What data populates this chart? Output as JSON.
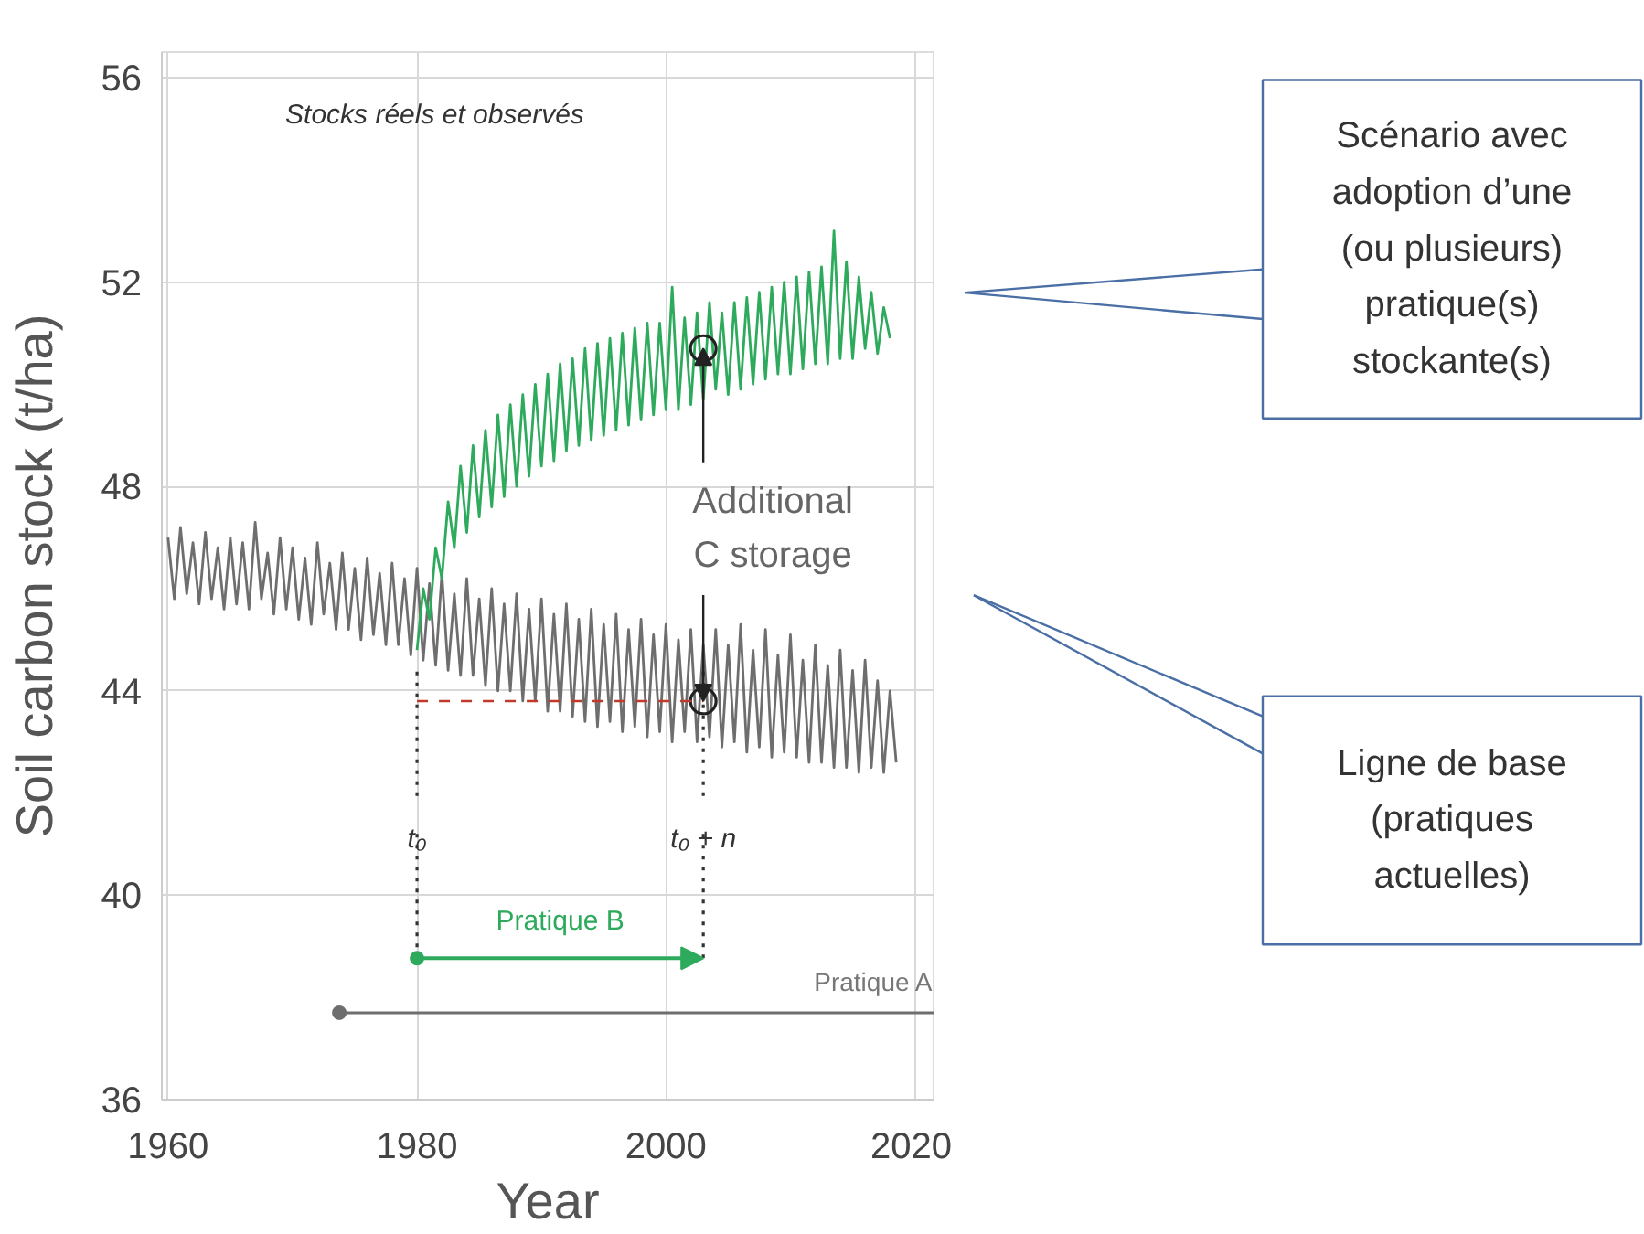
{
  "chart_data": {
    "type": "line",
    "title": "Stocks réels et observés",
    "xlabel": "Year",
    "ylabel": "Soil carbon stock (t/ha)",
    "xlim": [
      1959.5,
      2021.5
    ],
    "ylim": [
      36,
      56.5
    ],
    "xticks": [
      1960,
      1980,
      2000,
      2020
    ],
    "yticks": [
      36,
      40,
      44,
      48,
      52,
      56
    ],
    "grid": true,
    "series": [
      {
        "color": "#6e6e6e",
        "x": [
          1960,
          1960.5,
          1961,
          1961.5,
          1962,
          1962.5,
          1963,
          1963.5,
          1964,
          1964.5,
          1965,
          1965.5,
          1966,
          1966.5,
          1967,
          1967.5,
          1968,
          1968.5,
          1969,
          1969.5,
          1970,
          1970.5,
          1971,
          1971.5,
          1972,
          1972.5,
          1973,
          1973.5,
          1974,
          1974.5,
          1975,
          1975.5,
          1976,
          1976.5,
          1977,
          1977.5,
          1978,
          1978.5,
          1979,
          1979.5,
          1980,
          1980.5,
          1981,
          1981.5,
          1982,
          1982.5,
          1983,
          1983.5,
          1984,
          1984.5,
          1985,
          1985.5,
          1986,
          1986.5,
          1987,
          1987.5,
          1988,
          1988.5,
          1989,
          1989.5,
          1990,
          1990.5,
          1991,
          1991.5,
          1992,
          1992.5,
          1993,
          1993.5,
          1994,
          1994.5,
          1995,
          1995.5,
          1996,
          1996.5,
          1997,
          1997.5,
          1998,
          1998.5,
          1999,
          1999.5,
          2000,
          2000.5,
          2001,
          2001.5,
          2002,
          2002.5,
          2003,
          2003.5,
          2004,
          2004.5,
          2005,
          2005.5,
          2006,
          2006.5,
          2007,
          2007.5,
          2008,
          2008.5,
          2009,
          2009.5,
          2010,
          2010.5,
          2011,
          2011.5,
          2012,
          2012.5,
          2013,
          2013.5,
          2014,
          2014.5,
          2015,
          2015.5,
          2016,
          2016.5,
          2017,
          2017.5,
          2018,
          2018.5
        ],
        "values": [
          47.0,
          45.8,
          47.2,
          45.9,
          46.9,
          45.7,
          47.1,
          45.8,
          46.8,
          45.6,
          47.0,
          45.7,
          46.9,
          45.6,
          47.3,
          45.8,
          46.7,
          45.5,
          47.0,
          45.6,
          46.8,
          45.4,
          46.6,
          45.3,
          46.9,
          45.5,
          46.5,
          45.2,
          46.7,
          45.2,
          46.4,
          45.0,
          46.6,
          45.1,
          46.3,
          44.9,
          46.5,
          44.9,
          46.2,
          44.7,
          46.4,
          44.6,
          46.1,
          44.5,
          46.3,
          44.4,
          45.9,
          44.3,
          46.2,
          44.3,
          45.8,
          44.1,
          46.0,
          44.0,
          45.7,
          44.0,
          45.9,
          43.8,
          45.6,
          43.8,
          45.8,
          43.6,
          45.5,
          43.6,
          45.7,
          43.5,
          45.4,
          43.4,
          45.6,
          43.3,
          45.3,
          43.4,
          45.5,
          43.2,
          45.2,
          43.3,
          45.4,
          43.1,
          45.1,
          43.2,
          45.3,
          43.0,
          45.0,
          43.2,
          45.2,
          43.0,
          44.9,
          43.1,
          45.2,
          42.9,
          44.9,
          43.0,
          45.3,
          42.8,
          44.8,
          42.9,
          45.2,
          42.7,
          44.7,
          42.8,
          45.1,
          42.7,
          44.6,
          42.6,
          44.9,
          42.6,
          44.5,
          42.5,
          44.8,
          42.5,
          44.4,
          42.4,
          44.6,
          42.5,
          44.2,
          42.4,
          44.0,
          42.6
        ]
      },
      {
        "color": "#2eaa5c",
        "x": [
          1980,
          1980.5,
          1981,
          1981.5,
          1982,
          1982.5,
          1983,
          1983.5,
          1984,
          1984.5,
          1985,
          1985.5,
          1986,
          1986.5,
          1987,
          1987.5,
          1988,
          1988.5,
          1989,
          1989.5,
          1990,
          1990.5,
          1991,
          1991.5,
          1992,
          1992.5,
          1993,
          1993.5,
          1994,
          1994.5,
          1995,
          1995.5,
          1996,
          1996.5,
          1997,
          1997.5,
          1998,
          1998.5,
          1999,
          1999.5,
          2000,
          2000.5,
          2001,
          2001.5,
          2002,
          2002.5,
          2003,
          2003.5,
          2004,
          2004.5,
          2005,
          2005.5,
          2006,
          2006.5,
          2007,
          2007.5,
          2008,
          2008.5,
          2009,
          2009.5,
          2010,
          2010.5,
          2011,
          2011.5,
          2012,
          2012.5,
          2013,
          2013.5,
          2014,
          2014.5,
          2015,
          2015.5,
          2016,
          2016.5,
          2017,
          2017.5,
          2018
        ],
        "values": [
          44.8,
          46.0,
          45.4,
          46.8,
          46.2,
          47.7,
          46.8,
          48.4,
          47.1,
          48.8,
          47.4,
          49.1,
          47.6,
          49.4,
          47.8,
          49.6,
          48.0,
          49.8,
          48.2,
          50.0,
          48.4,
          50.2,
          48.5,
          50.4,
          48.7,
          50.5,
          48.8,
          50.7,
          48.9,
          50.8,
          49.0,
          50.9,
          49.1,
          51.0,
          49.2,
          51.1,
          49.3,
          51.2,
          49.4,
          51.2,
          49.5,
          51.9,
          49.5,
          51.3,
          49.6,
          51.4,
          49.7,
          51.6,
          49.9,
          51.4,
          49.8,
          51.6,
          49.9,
          51.7,
          50.0,
          51.8,
          50.1,
          51.9,
          50.2,
          52.0,
          50.2,
          52.1,
          50.3,
          52.2,
          50.4,
          52.3,
          50.4,
          53.0,
          50.5,
          52.4,
          50.5,
          52.1,
          50.7,
          51.8,
          50.6,
          51.5,
          50.9
        ]
      },
      {
        "type": "scatter",
        "marker": "circle",
        "color": "#222222",
        "x": [
          2003,
          2003
        ],
        "values": [
          50.7,
          43.8
        ]
      }
    ],
    "annotations": [
      {
        "text": "Additional C storage",
        "x": 2003,
        "y": 50.7
      },
      "t₀",
      "t₀ + n",
      "Pratique B",
      "Pratique A",
      "Scénario avec adoption d’une (ou plusieurs) pratique(s) stockante(s)",
      "Ligne de base (pratiques actuelles)"
    ],
    "ref_lines": [
      {
        "axis": "x",
        "value": 1980,
        "color": "#333333",
        "line_style": "dotted"
      },
      {
        "axis": "x",
        "value": 2003,
        "color": "#333333",
        "line_style": "dotted"
      },
      {
        "axis": "y",
        "value": 43.8,
        "color": "#c0392b",
        "line_style": "dashed"
      }
    ]
  }
}
